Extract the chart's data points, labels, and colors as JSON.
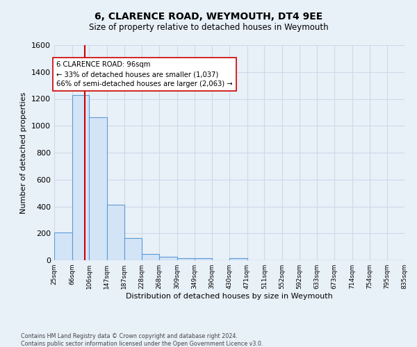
{
  "title": "6, CLARENCE ROAD, WEYMOUTH, DT4 9EE",
  "subtitle": "Size of property relative to detached houses in Weymouth",
  "xlabel": "Distribution of detached houses by size in Weymouth",
  "ylabel": "Number of detached properties",
  "footnote": "Contains HM Land Registry data © Crown copyright and database right 2024.\nContains public sector information licensed under the Open Government Licence v3.0.",
  "bin_edges": [
    25,
    66,
    106,
    147,
    187,
    228,
    268,
    309,
    349,
    390,
    430,
    471,
    511,
    552,
    592,
    633,
    673,
    714,
    754,
    795,
    835
  ],
  "bin_counts": [
    205,
    1230,
    1065,
    415,
    165,
    48,
    25,
    18,
    15,
    0,
    15,
    0,
    0,
    0,
    0,
    0,
    0,
    0,
    0,
    0
  ],
  "bar_facecolor": "#d4e4f7",
  "bar_edgecolor": "#5b9bd5",
  "property_size": 96,
  "property_line_color": "#cc0000",
  "annotation_text": "6 CLARENCE ROAD: 96sqm\n← 33% of detached houses are smaller (1,037)\n66% of semi-detached houses are larger (2,063) →",
  "annotation_box_color": "#ffffff",
  "annotation_box_edgecolor": "#cc0000",
  "ylim": [
    0,
    1600
  ],
  "xlim": [
    25,
    835
  ],
  "background_color": "#e8f0f8",
  "grid_color": "#d0d8e8",
  "yticks": [
    0,
    200,
    400,
    600,
    800,
    1000,
    1200,
    1400,
    1600
  ]
}
